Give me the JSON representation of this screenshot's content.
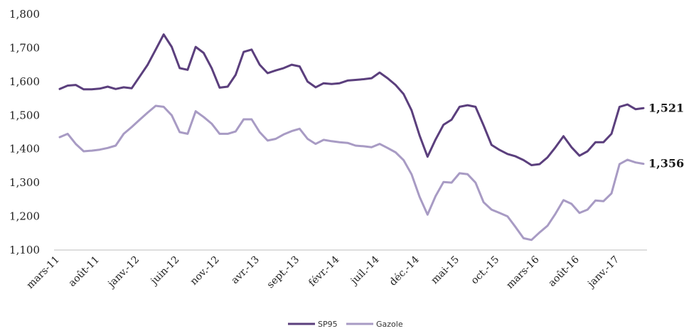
{
  "chart_data": {
    "type": "line",
    "title": "",
    "xlabel": "",
    "ylabel": "",
    "ylim": [
      1.1,
      1.8
    ],
    "y_ticks": [
      "1,100",
      "1,200",
      "1,300",
      "1,400",
      "1,500",
      "1,600",
      "1,700",
      "1,800"
    ],
    "x_tick_labels": [
      "mars-11",
      "août-11",
      "janv.-12",
      "juin-12",
      "nov.-12",
      "avr.-13",
      "sept.-13",
      "févr.-14",
      "juil.-14",
      "déc.-14",
      "mai-15",
      "oct.-15",
      "mars-16",
      "août-16",
      "janv.-17"
    ],
    "x_start": "2011-03",
    "x_end": "2017-04",
    "grid": false,
    "legend_position": "bottom",
    "series": [
      {
        "name": "SP95",
        "color": "#5b3f7d",
        "end_label": "1,521",
        "values": [
          1.578,
          1.588,
          1.59,
          1.577,
          1.577,
          1.579,
          1.585,
          1.578,
          1.583,
          1.58,
          1.615,
          1.65,
          1.695,
          1.74,
          1.703,
          1.64,
          1.635,
          1.703,
          1.685,
          1.64,
          1.582,
          1.585,
          1.62,
          1.688,
          1.695,
          1.65,
          1.625,
          1.633,
          1.64,
          1.65,
          1.645,
          1.6,
          1.583,
          1.595,
          1.593,
          1.595,
          1.603,
          1.605,
          1.607,
          1.61,
          1.627,
          1.61,
          1.59,
          1.563,
          1.515,
          1.44,
          1.377,
          1.428,
          1.472,
          1.487,
          1.525,
          1.53,
          1.525,
          1.47,
          1.412,
          1.397,
          1.385,
          1.378,
          1.367,
          1.352,
          1.355,
          1.375,
          1.405,
          1.438,
          1.405,
          1.38,
          1.393,
          1.42,
          1.42,
          1.445,
          1.525,
          1.532,
          1.518,
          1.521
        ]
      },
      {
        "name": "Gazole",
        "color": "#a89bc4",
        "end_label": "1,356",
        "values": [
          1.435,
          1.445,
          1.415,
          1.393,
          1.395,
          1.398,
          1.403,
          1.41,
          1.445,
          1.465,
          1.487,
          1.508,
          1.528,
          1.525,
          1.5,
          1.45,
          1.445,
          1.512,
          1.495,
          1.475,
          1.445,
          1.445,
          1.452,
          1.488,
          1.488,
          1.45,
          1.425,
          1.43,
          1.443,
          1.453,
          1.46,
          1.43,
          1.415,
          1.427,
          1.423,
          1.42,
          1.418,
          1.41,
          1.408,
          1.405,
          1.415,
          1.403,
          1.39,
          1.367,
          1.325,
          1.258,
          1.205,
          1.26,
          1.302,
          1.3,
          1.328,
          1.325,
          1.3,
          1.242,
          1.22,
          1.21,
          1.2,
          1.168,
          1.135,
          1.13,
          1.152,
          1.172,
          1.208,
          1.248,
          1.237,
          1.21,
          1.22,
          1.247,
          1.245,
          1.268,
          1.355,
          1.368,
          1.36,
          1.356
        ]
      }
    ]
  }
}
